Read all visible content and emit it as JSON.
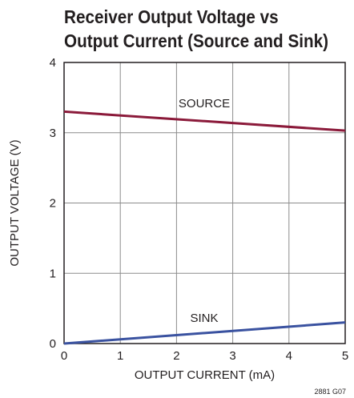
{
  "title_lines": [
    "Receiver Output Voltage vs",
    "Output Current (Source and Sink)"
  ],
  "figure_code": "2881 G07",
  "chart_data": {
    "type": "line",
    "title": "Receiver Output Voltage vs Output Current (Source and Sink)",
    "xlabel": "OUTPUT CURRENT (mA)",
    "ylabel": "OUTPUT VOLTAGE (V)",
    "xlim": [
      0,
      5
    ],
    "ylim": [
      0,
      4
    ],
    "x_ticks": [
      "0",
      "1",
      "2",
      "3",
      "4",
      "5"
    ],
    "y_ticks": [
      "0",
      "1",
      "2",
      "3",
      "4"
    ],
    "grid": true,
    "series": [
      {
        "name": "SOURCE",
        "color": "#8b1a3a",
        "x": [
          0,
          5
        ],
        "y": [
          3.3,
          3.03
        ]
      },
      {
        "name": "SINK",
        "color": "#3a52a0",
        "x": [
          0,
          5
        ],
        "y": [
          0.0,
          0.3
        ]
      }
    ]
  }
}
